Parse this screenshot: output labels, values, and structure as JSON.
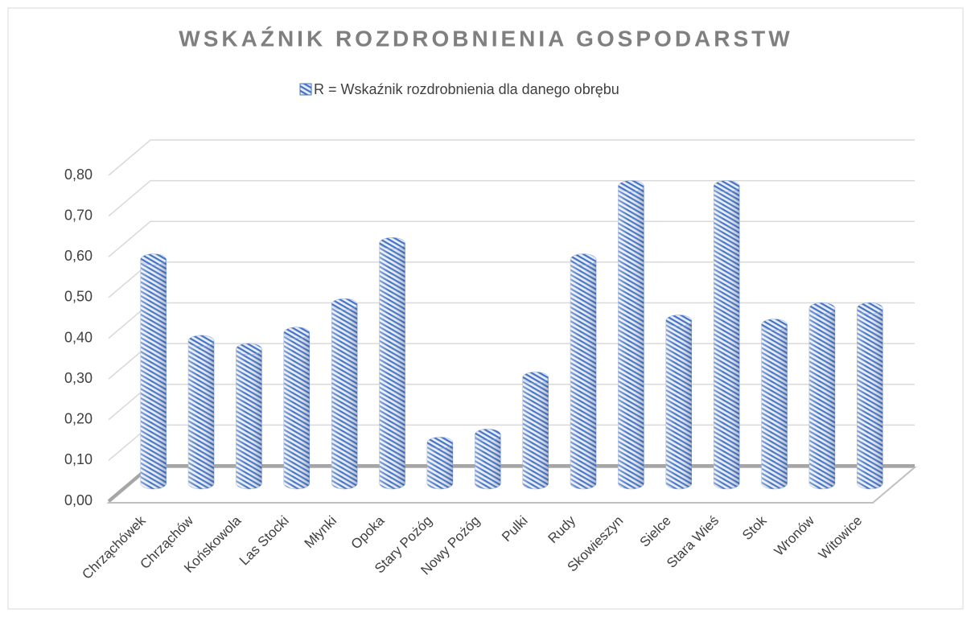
{
  "chart_data": {
    "type": "bar3d",
    "title": "WSKAŹNIK ROZDROBNIENIA GOSPODARSTW",
    "categories": [
      "Chrząchówek",
      "Chrząchów",
      "Końskowola",
      "Las Stocki",
      "Młynki",
      "Opoka",
      "Stary Pożóg",
      "Nowy Pożóg",
      "Pulki",
      "Rudy",
      "Skowieszyn",
      "Sielce",
      "Stara Wieś",
      "Stok",
      "Wronów",
      "Witowice"
    ],
    "series": [
      {
        "name": "R = Wskaźnik rozdrobnienia dla danego obrębu",
        "color": "#4472c4",
        "values": [
          0.55,
          0.35,
          0.33,
          0.37,
          0.44,
          0.59,
          0.1,
          0.12,
          0.26,
          0.55,
          0.73,
          0.4,
          0.73,
          0.39,
          0.43,
          0.43
        ]
      }
    ],
    "ylim": [
      0,
      0.8
    ],
    "yticks": [
      {
        "value": 0,
        "label": "0,00"
      },
      {
        "value": 0.1,
        "label": "0,10"
      },
      {
        "value": 0.2,
        "label": "0,20"
      },
      {
        "value": 0.3,
        "label": "0,30"
      },
      {
        "value": 0.4,
        "label": "0,40"
      },
      {
        "value": 0.5,
        "label": "0,50"
      },
      {
        "value": 0.6,
        "label": "0,60"
      },
      {
        "value": 0.7,
        "label": "0,70"
      },
      {
        "value": 0.8,
        "label": "0,80"
      }
    ],
    "grid": true
  }
}
